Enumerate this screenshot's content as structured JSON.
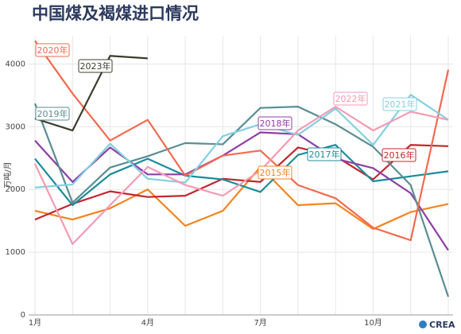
{
  "chart_data": {
    "type": "line",
    "title": "中国煤及褐煤进口情况",
    "y_label": "万吨/月",
    "logo": "CREA",
    "categories": [
      "1月",
      null,
      null,
      "4月",
      null,
      null,
      "7月",
      null,
      null,
      "10月",
      null,
      null
    ],
    "ylim": [
      0,
      4450
    ],
    "yticks": [
      0,
      1000,
      2000,
      3000,
      4000
    ],
    "grid": true,
    "series": [
      {
        "name": "2015年",
        "color": "#f5841f",
        "values": [
          1660,
          1520,
          1700,
          2000,
          1420,
          1660,
          2360,
          1750,
          1780,
          1370,
          1640,
          1770
        ]
      },
      {
        "name": "2016年",
        "color": "#c2262e",
        "values": [
          1520,
          1770,
          1970,
          1880,
          1900,
          2170,
          2120,
          2670,
          2530,
          2160,
          2710,
          2690
        ]
      },
      {
        "name": "2017年",
        "color": "#1b8c99",
        "values": [
          2490,
          1750,
          2240,
          2490,
          2220,
          2160,
          1960,
          2550,
          2710,
          2130,
          2210,
          2290
        ]
      },
      {
        "name": "2018年",
        "color": "#8e3fa6",
        "values": [
          2780,
          2120,
          2670,
          2240,
          2240,
          2540,
          2910,
          2880,
          2490,
          2340,
          1940,
          1030
        ]
      },
      {
        "name": "2019年",
        "color": "#5a8e92",
        "values": [
          3370,
          1790,
          2350,
          2530,
          2740,
          2720,
          3300,
          3320,
          3040,
          2680,
          2070,
          290
        ]
      },
      {
        "name": "2020年",
        "color": "#f26a4f",
        "values": [
          4370,
          3530,
          2780,
          3110,
          2220,
          2540,
          2620,
          2070,
          1860,
          1390,
          1190,
          3910
        ]
      },
      {
        "name": "2021年",
        "color": "#82d0e0",
        "values": [
          2030,
          2080,
          2730,
          2170,
          2110,
          2850,
          3040,
          2870,
          3290,
          2710,
          3510,
          3110
        ]
      },
      {
        "name": "2022年",
        "color": "#f59ab4",
        "values": [
          2410,
          1130,
          1750,
          2360,
          2070,
          1900,
          2300,
          2940,
          3320,
          2940,
          3240,
          3110
        ]
      },
      {
        "name": "2023年",
        "color": "#3b3d2e",
        "values": [
          3130,
          2940,
          4130,
          4090,
          null,
          null,
          null,
          null,
          null,
          null,
          null,
          null
        ]
      }
    ]
  }
}
